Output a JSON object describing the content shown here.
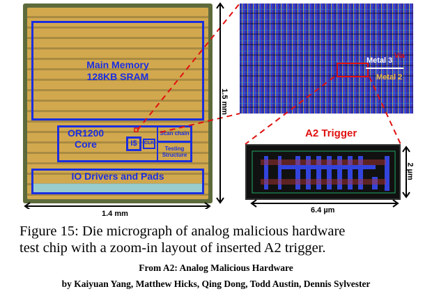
{
  "die": {
    "main_memory": "Main Memory",
    "sram": "128KB SRAM",
    "core_line1": "OR1200",
    "core_line2": "Core",
    "icache": "I$",
    "clk": "CLK",
    "scan_chain": "Scan chain",
    "testing": "Testing Structure",
    "io": "IO Drivers and Pads",
    "height_label": "1.5 mm",
    "width_label": "1.4 mm"
  },
  "zoom": {
    "metal3": "Metal 3",
    "metal2": "Metal 2",
    "via": "Via"
  },
  "trigger": {
    "title": "A2 Trigger",
    "height_label": "2 µm",
    "width_label": "6.4 µm"
  },
  "caption": {
    "line1": "Figure 15: Die micrograph of analog malicious hardware",
    "line2": "test chip with a zoom-in layout of inserted A2 trigger.",
    "source": "From A2: Analog Malicious Hardware",
    "authors": "by Kaiyuan Yang, Matthew Hicks, Qing Dong, Todd Austin, Dennis Sylvester"
  },
  "colors": {
    "blue": "#1a2ee0",
    "red": "#e01010"
  }
}
